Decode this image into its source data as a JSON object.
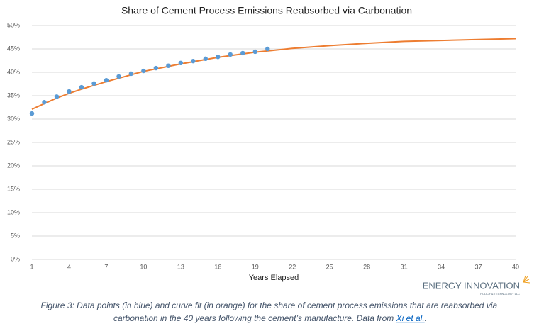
{
  "chart_data": {
    "type": "scatter",
    "title": "Share of Cement Process Emissions Reabsorbed via Carbonation",
    "xlabel": "Years Elapsed",
    "xlim": [
      1,
      40
    ],
    "xticks": [
      1,
      4,
      7,
      10,
      13,
      16,
      19,
      22,
      25,
      28,
      31,
      34,
      37,
      40
    ],
    "ylim": [
      0,
      50
    ],
    "yticks": [
      {
        "value": 0,
        "label": "0%"
      },
      {
        "value": 5,
        "label": "5%"
      },
      {
        "value": 10,
        "label": "10%"
      },
      {
        "value": 15,
        "label": "15%"
      },
      {
        "value": 20,
        "label": "20%"
      },
      {
        "value": 25,
        "label": "25%"
      },
      {
        "value": 30,
        "label": "30%"
      },
      {
        "value": 35,
        "label": "35%"
      },
      {
        "value": 40,
        "label": "40%"
      },
      {
        "value": 45,
        "label": "45%"
      },
      {
        "value": 50,
        "label": "50%"
      }
    ],
    "grid": true,
    "series": [
      {
        "kind": "points",
        "color": "#5b9bd5",
        "x": [
          1,
          2,
          3,
          4,
          5,
          6,
          7,
          8,
          9,
          10,
          11,
          12,
          13,
          14,
          15,
          16,
          17,
          18,
          19,
          20
        ],
        "values": [
          31.2,
          33.6,
          34.8,
          35.9,
          36.8,
          37.6,
          38.3,
          39.1,
          39.7,
          40.3,
          40.9,
          41.4,
          42.0,
          42.4,
          42.9,
          43.3,
          43.8,
          44.1,
          44.4,
          45.0
        ]
      },
      {
        "kind": "curve",
        "color": "#ed7d31",
        "x": [
          1,
          2,
          3,
          4,
          5,
          7,
          10,
          13,
          16,
          19,
          22,
          25,
          28,
          31,
          34,
          37,
          40
        ],
        "values": [
          32.1,
          33.3,
          34.5,
          35.5,
          36.4,
          38.0,
          40.2,
          41.8,
          43.2,
          44.3,
          45.1,
          45.7,
          46.2,
          46.6,
          46.8,
          47.0,
          47.2
        ]
      }
    ]
  },
  "logo": {
    "name": "ENERGY INNOVATION",
    "tagline": "POLICY & TECHNOLOGY LLC"
  },
  "caption": {
    "line1": "Figure 3: Data points (in blue) and curve fit (in orange) for the share of cement process emissions that are reabsorbed via",
    "line2": "carbonation in the 40 years following the cement’s manufacture.  Data from ",
    "link": "Xi et al.",
    "end": "."
  }
}
